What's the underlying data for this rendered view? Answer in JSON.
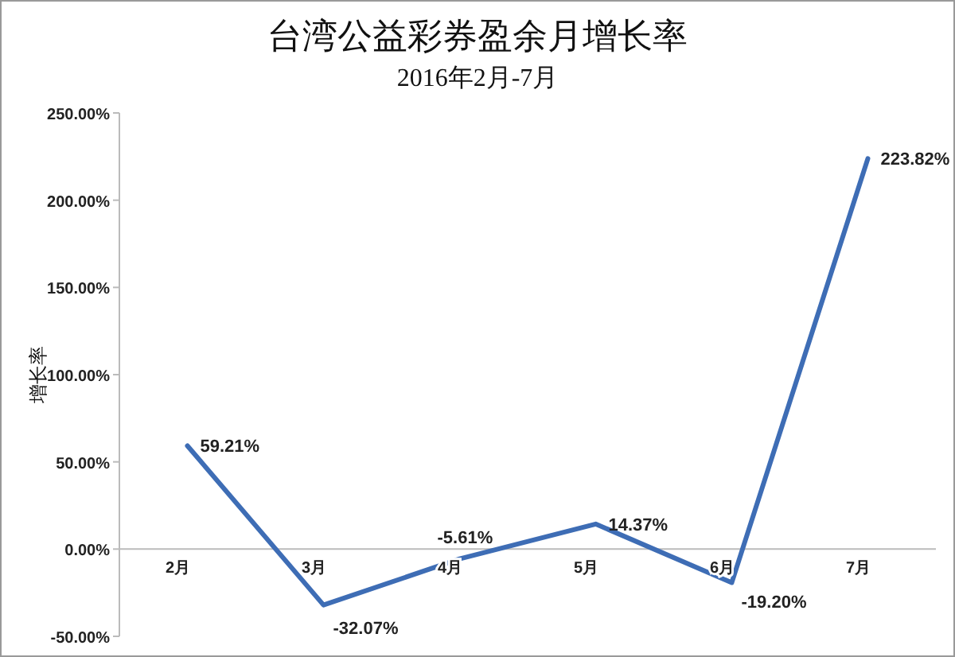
{
  "chart_data": {
    "type": "line",
    "title": "台湾公益彩券盈余月增长率",
    "subtitle": "2016年2月-7月",
    "ylabel": "增长率",
    "categories": [
      "2月",
      "3月",
      "4月",
      "5月",
      "6月",
      "7月"
    ],
    "series": [
      {
        "color": "#3e6db5",
        "values": [
          59.21,
          -32.07,
          -5.61,
          14.37,
          -19.2,
          223.82
        ],
        "value_labels": [
          "59.21%",
          "-32.07%",
          "-5.61%",
          "14.37%",
          "-19.20%",
          "223.82%"
        ]
      }
    ],
    "ylim": [
      -50,
      250
    ],
    "yticks": [
      {
        "value": -50,
        "label": "-50.00%"
      },
      {
        "value": 0,
        "label": "0.00%"
      },
      {
        "value": 50,
        "label": "50.00%"
      },
      {
        "value": 100,
        "label": "100.00%"
      },
      {
        "value": 150,
        "label": "150.00%"
      },
      {
        "value": 200,
        "label": "200.00%"
      },
      {
        "value": 250,
        "label": "250.00%"
      }
    ],
    "grid": false,
    "marker": "none",
    "line_style": "solid"
  }
}
